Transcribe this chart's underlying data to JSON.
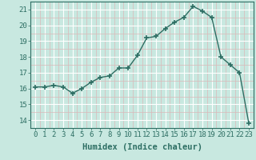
{
  "x": [
    0,
    1,
    2,
    3,
    4,
    5,
    6,
    7,
    8,
    9,
    10,
    11,
    12,
    13,
    14,
    15,
    16,
    17,
    18,
    19,
    20,
    21,
    22,
    23
  ],
  "y": [
    16.1,
    16.1,
    16.2,
    16.1,
    15.7,
    16.0,
    16.4,
    16.7,
    16.8,
    17.3,
    17.3,
    18.1,
    19.2,
    19.3,
    19.8,
    20.2,
    20.5,
    21.2,
    20.9,
    20.5,
    18.0,
    17.5,
    17.0,
    13.8
  ],
  "xlabel": "Humidex (Indice chaleur)",
  "ylim": [
    13.5,
    21.5
  ],
  "xlim": [
    -0.5,
    23.5
  ],
  "yticks": [
    14,
    15,
    16,
    17,
    18,
    19,
    20,
    21
  ],
  "xticks": [
    0,
    1,
    2,
    3,
    4,
    5,
    6,
    7,
    8,
    9,
    10,
    11,
    12,
    13,
    14,
    15,
    16,
    17,
    18,
    19,
    20,
    21,
    22,
    23
  ],
  "line_color": "#2d6e63",
  "marker_color": "#2d6e63",
  "bg_color": "#c8e8e0",
  "major_grid_color": "#ffffff",
  "minor_grid_color": "#dbb8b8",
  "axis_color": "#2d6e63",
  "tick_label_color": "#2d6e63",
  "label_color": "#2d6e63",
  "font_size_tick": 6.5,
  "font_size_label": 7.5
}
